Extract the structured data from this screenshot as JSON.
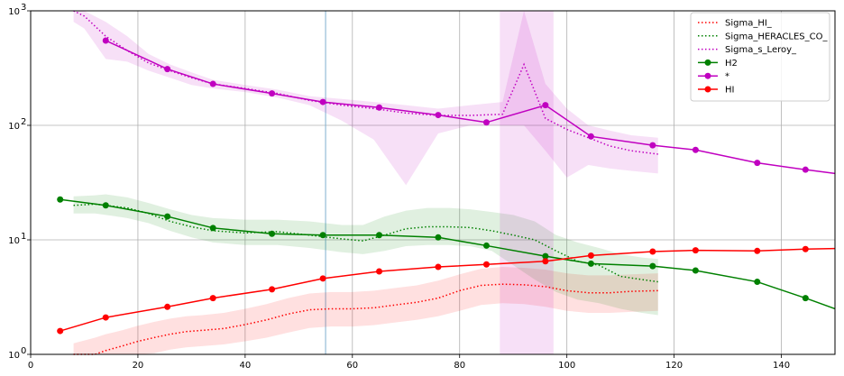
{
  "chart_data": {
    "type": "line",
    "title": "",
    "xlabel": "",
    "ylabel": "",
    "xlim": [
      0,
      150
    ],
    "ylim": [
      1,
      1000
    ],
    "yscale": "log",
    "grid": true,
    "legend_position": "upper right",
    "vertical_marker_x": 55,
    "x_ticks": [
      0,
      20,
      40,
      60,
      80,
      100,
      120,
      140
    ],
    "x_tick_labels": [
      "0",
      "20",
      "40",
      "60",
      "80",
      "100",
      "120",
      "140"
    ],
    "y_ticks": [
      1,
      10,
      100,
      1000
    ],
    "y_tick_labels": [
      "10^0",
      "10^1",
      "10^2",
      "10^3"
    ],
    "series": [
      {
        "name": "Sigma_HI_",
        "style": "dotted",
        "color": "#ff0000",
        "x": [
          8,
          10,
          12,
          14,
          17,
          20,
          23,
          26,
          29,
          32,
          36,
          40,
          44,
          48,
          52,
          56,
          60,
          64,
          68,
          72,
          76,
          80,
          84,
          88,
          92,
          96,
          100,
          104,
          108,
          112,
          117
        ],
        "y": [
          0.9,
          0.95,
          1.0,
          1.08,
          1.18,
          1.3,
          1.4,
          1.5,
          1.58,
          1.62,
          1.68,
          1.82,
          2.0,
          2.25,
          2.45,
          2.5,
          2.5,
          2.55,
          2.7,
          2.85,
          3.1,
          3.6,
          4.0,
          4.1,
          4.05,
          3.9,
          3.6,
          3.45,
          3.45,
          3.55,
          3.6
        ],
        "band_lower": [
          0.6,
          0.65,
          0.7,
          0.78,
          0.85,
          0.95,
          1.02,
          1.1,
          1.15,
          1.18,
          1.22,
          1.3,
          1.4,
          1.55,
          1.7,
          1.75,
          1.75,
          1.8,
          1.9,
          2.0,
          2.15,
          2.4,
          2.7,
          2.8,
          2.75,
          2.6,
          2.4,
          2.3,
          2.3,
          2.35,
          2.4
        ],
        "band_upper": [
          1.25,
          1.32,
          1.4,
          1.5,
          1.62,
          1.78,
          1.92,
          2.05,
          2.15,
          2.2,
          2.3,
          2.5,
          2.75,
          3.1,
          3.4,
          3.5,
          3.5,
          3.6,
          3.8,
          4.0,
          4.4,
          5.0,
          5.6,
          5.8,
          5.7,
          5.5,
          5.1,
          4.9,
          4.9,
          5.0,
          5.1
        ]
      },
      {
        "name": "Sigma_HERACLES_CO_",
        "style": "dotted",
        "color": "#008000",
        "x": [
          8,
          12,
          14,
          18,
          22,
          26,
          30,
          34,
          40,
          46,
          52,
          58,
          62,
          66,
          70,
          74,
          78,
          82,
          86,
          90,
          94,
          98,
          102,
          106,
          110,
          114,
          117
        ],
        "y": [
          20.0,
          20.5,
          20.0,
          19.0,
          17.0,
          14.5,
          13.0,
          12.0,
          11.5,
          11.8,
          11.0,
          10.2,
          9.8,
          11.0,
          12.5,
          13.0,
          13.0,
          12.8,
          12.0,
          11.0,
          10.0,
          8.0,
          6.5,
          6.0,
          4.8,
          4.5,
          4.3
        ],
        "band_lower": [
          17.0,
          17.0,
          16.5,
          15.5,
          14.0,
          12.0,
          10.5,
          9.5,
          9.0,
          9.0,
          8.5,
          7.8,
          7.5,
          8.0,
          8.8,
          9.0,
          9.0,
          8.8,
          8.0,
          6.0,
          4.5,
          3.5,
          3.0,
          2.8,
          2.5,
          2.3,
          2.2
        ],
        "band_upper": [
          24.0,
          24.5,
          25.0,
          23.5,
          21.0,
          18.5,
          16.5,
          15.5,
          15.0,
          15.0,
          14.5,
          13.5,
          13.5,
          16.0,
          18.0,
          19.0,
          19.0,
          18.5,
          17.5,
          16.5,
          14.5,
          11.0,
          9.5,
          8.5,
          7.5,
          7.0,
          6.8
        ]
      },
      {
        "name": "Sigma_s_Leroy_",
        "style": "dotted",
        "color": "#c000c0",
        "x": [
          8,
          10,
          14,
          18,
          22,
          26,
          30,
          34,
          40,
          46,
          52,
          58,
          64,
          70,
          76,
          82,
          88,
          92,
          96,
          100,
          104,
          108,
          112,
          117
        ],
        "y": [
          1000,
          900,
          600,
          450,
          350,
          300,
          260,
          230,
          210,
          190,
          165,
          150,
          140,
          128,
          122,
          122,
          125,
          340,
          115,
          92,
          78,
          66,
          60,
          56
        ],
        "band_lower": [
          800,
          700,
          380,
          360,
          300,
          260,
          225,
          210,
          195,
          175,
          150,
          110,
          75,
          30,
          85,
          100,
          100,
          100,
          60,
          35,
          45,
          42,
          40,
          38
        ],
        "band_upper": [
          1200,
          1100,
          800,
          600,
          420,
          340,
          290,
          250,
          225,
          205,
          180,
          170,
          160,
          150,
          140,
          150,
          160,
          1200,
          230,
          140,
          100,
          90,
          82,
          78
        ],
        "extra_band": {
          "x0": 87.5,
          "x1": 97.5
        }
      },
      {
        "name": "H2",
        "style": "line-marker",
        "color": "#008000",
        "x": [
          5.5,
          14,
          25.5,
          34,
          45,
          54.5,
          65,
          76,
          85,
          96,
          104.5,
          116,
          124,
          135.5,
          144.5,
          150
        ],
        "y": [
          22.5,
          20.0,
          16.0,
          12.7,
          11.3,
          11.0,
          11.0,
          10.5,
          8.9,
          7.2,
          6.2,
          5.9,
          5.4,
          4.3,
          3.1,
          2.5
        ]
      },
      {
        "name": "*",
        "style": "line-marker",
        "color": "#c000c0",
        "x": [
          14,
          25.5,
          34,
          45,
          54.5,
          65,
          76,
          85,
          96,
          104.5,
          116,
          124,
          135.5,
          144.5,
          150
        ],
        "y": [
          550,
          310,
          230,
          190,
          160,
          143,
          123,
          106,
          150,
          80,
          67,
          61,
          47,
          41,
          38
        ]
      },
      {
        "name": "HI",
        "style": "line-marker",
        "color": "#ff0000",
        "x": [
          5.5,
          14,
          25.5,
          34,
          45,
          54.5,
          65,
          76,
          85,
          96,
          104.5,
          116,
          124,
          135.5,
          144.5,
          150
        ],
        "y": [
          1.6,
          2.1,
          2.6,
          3.1,
          3.7,
          4.6,
          5.3,
          5.8,
          6.1,
          6.5,
          7.3,
          7.9,
          8.1,
          8.0,
          8.3,
          8.4
        ]
      }
    ]
  }
}
